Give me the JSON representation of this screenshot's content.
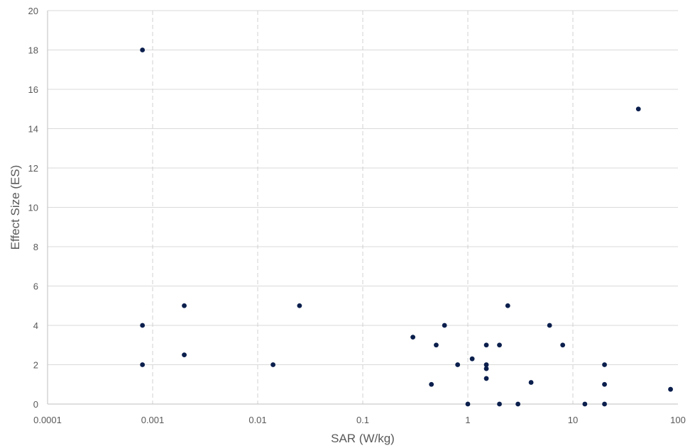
{
  "chart_data": {
    "type": "scatter",
    "xlabel": "SAR (W/kg)",
    "ylabel": "Effect Size (ES)",
    "xscale": "log",
    "xlim": [
      0.0001,
      100
    ],
    "ylim": [
      0,
      20
    ],
    "x_ticks": [
      "0.0001",
      "0.001",
      "0.01",
      "0.1",
      "1",
      "10",
      "100"
    ],
    "y_ticks": [
      "0",
      "2",
      "4",
      "6",
      "8",
      "10",
      "12",
      "14",
      "16",
      "18",
      "20"
    ],
    "grid": {
      "horizontal": "solid",
      "vertical": "dashed"
    },
    "marker_color": "#0b1f4d",
    "points": [
      {
        "x": 0.0008,
        "y": 18
      },
      {
        "x": 0.0008,
        "y": 4
      },
      {
        "x": 0.0008,
        "y": 2
      },
      {
        "x": 0.002,
        "y": 5
      },
      {
        "x": 0.002,
        "y": 2.5
      },
      {
        "x": 0.014,
        "y": 2
      },
      {
        "x": 0.025,
        "y": 5
      },
      {
        "x": 0.3,
        "y": 3.4
      },
      {
        "x": 0.45,
        "y": 1
      },
      {
        "x": 0.5,
        "y": 3
      },
      {
        "x": 0.6,
        "y": 4
      },
      {
        "x": 0.8,
        "y": 2
      },
      {
        "x": 1.0,
        "y": 0
      },
      {
        "x": 1.1,
        "y": 2.3
      },
      {
        "x": 1.5,
        "y": 3
      },
      {
        "x": 1.5,
        "y": 2
      },
      {
        "x": 1.5,
        "y": 1.8
      },
      {
        "x": 1.5,
        "y": 1.3
      },
      {
        "x": 2.0,
        "y": 3
      },
      {
        "x": 2.0,
        "y": 0
      },
      {
        "x": 2.4,
        "y": 5
      },
      {
        "x": 3.0,
        "y": 0
      },
      {
        "x": 4.0,
        "y": 1.1
      },
      {
        "x": 6.0,
        "y": 4
      },
      {
        "x": 8.0,
        "y": 3
      },
      {
        "x": 13,
        "y": 0
      },
      {
        "x": 20,
        "y": 2
      },
      {
        "x": 20,
        "y": 1
      },
      {
        "x": 20,
        "y": 0
      },
      {
        "x": 42,
        "y": 15
      },
      {
        "x": 85,
        "y": 0.75
      }
    ]
  }
}
